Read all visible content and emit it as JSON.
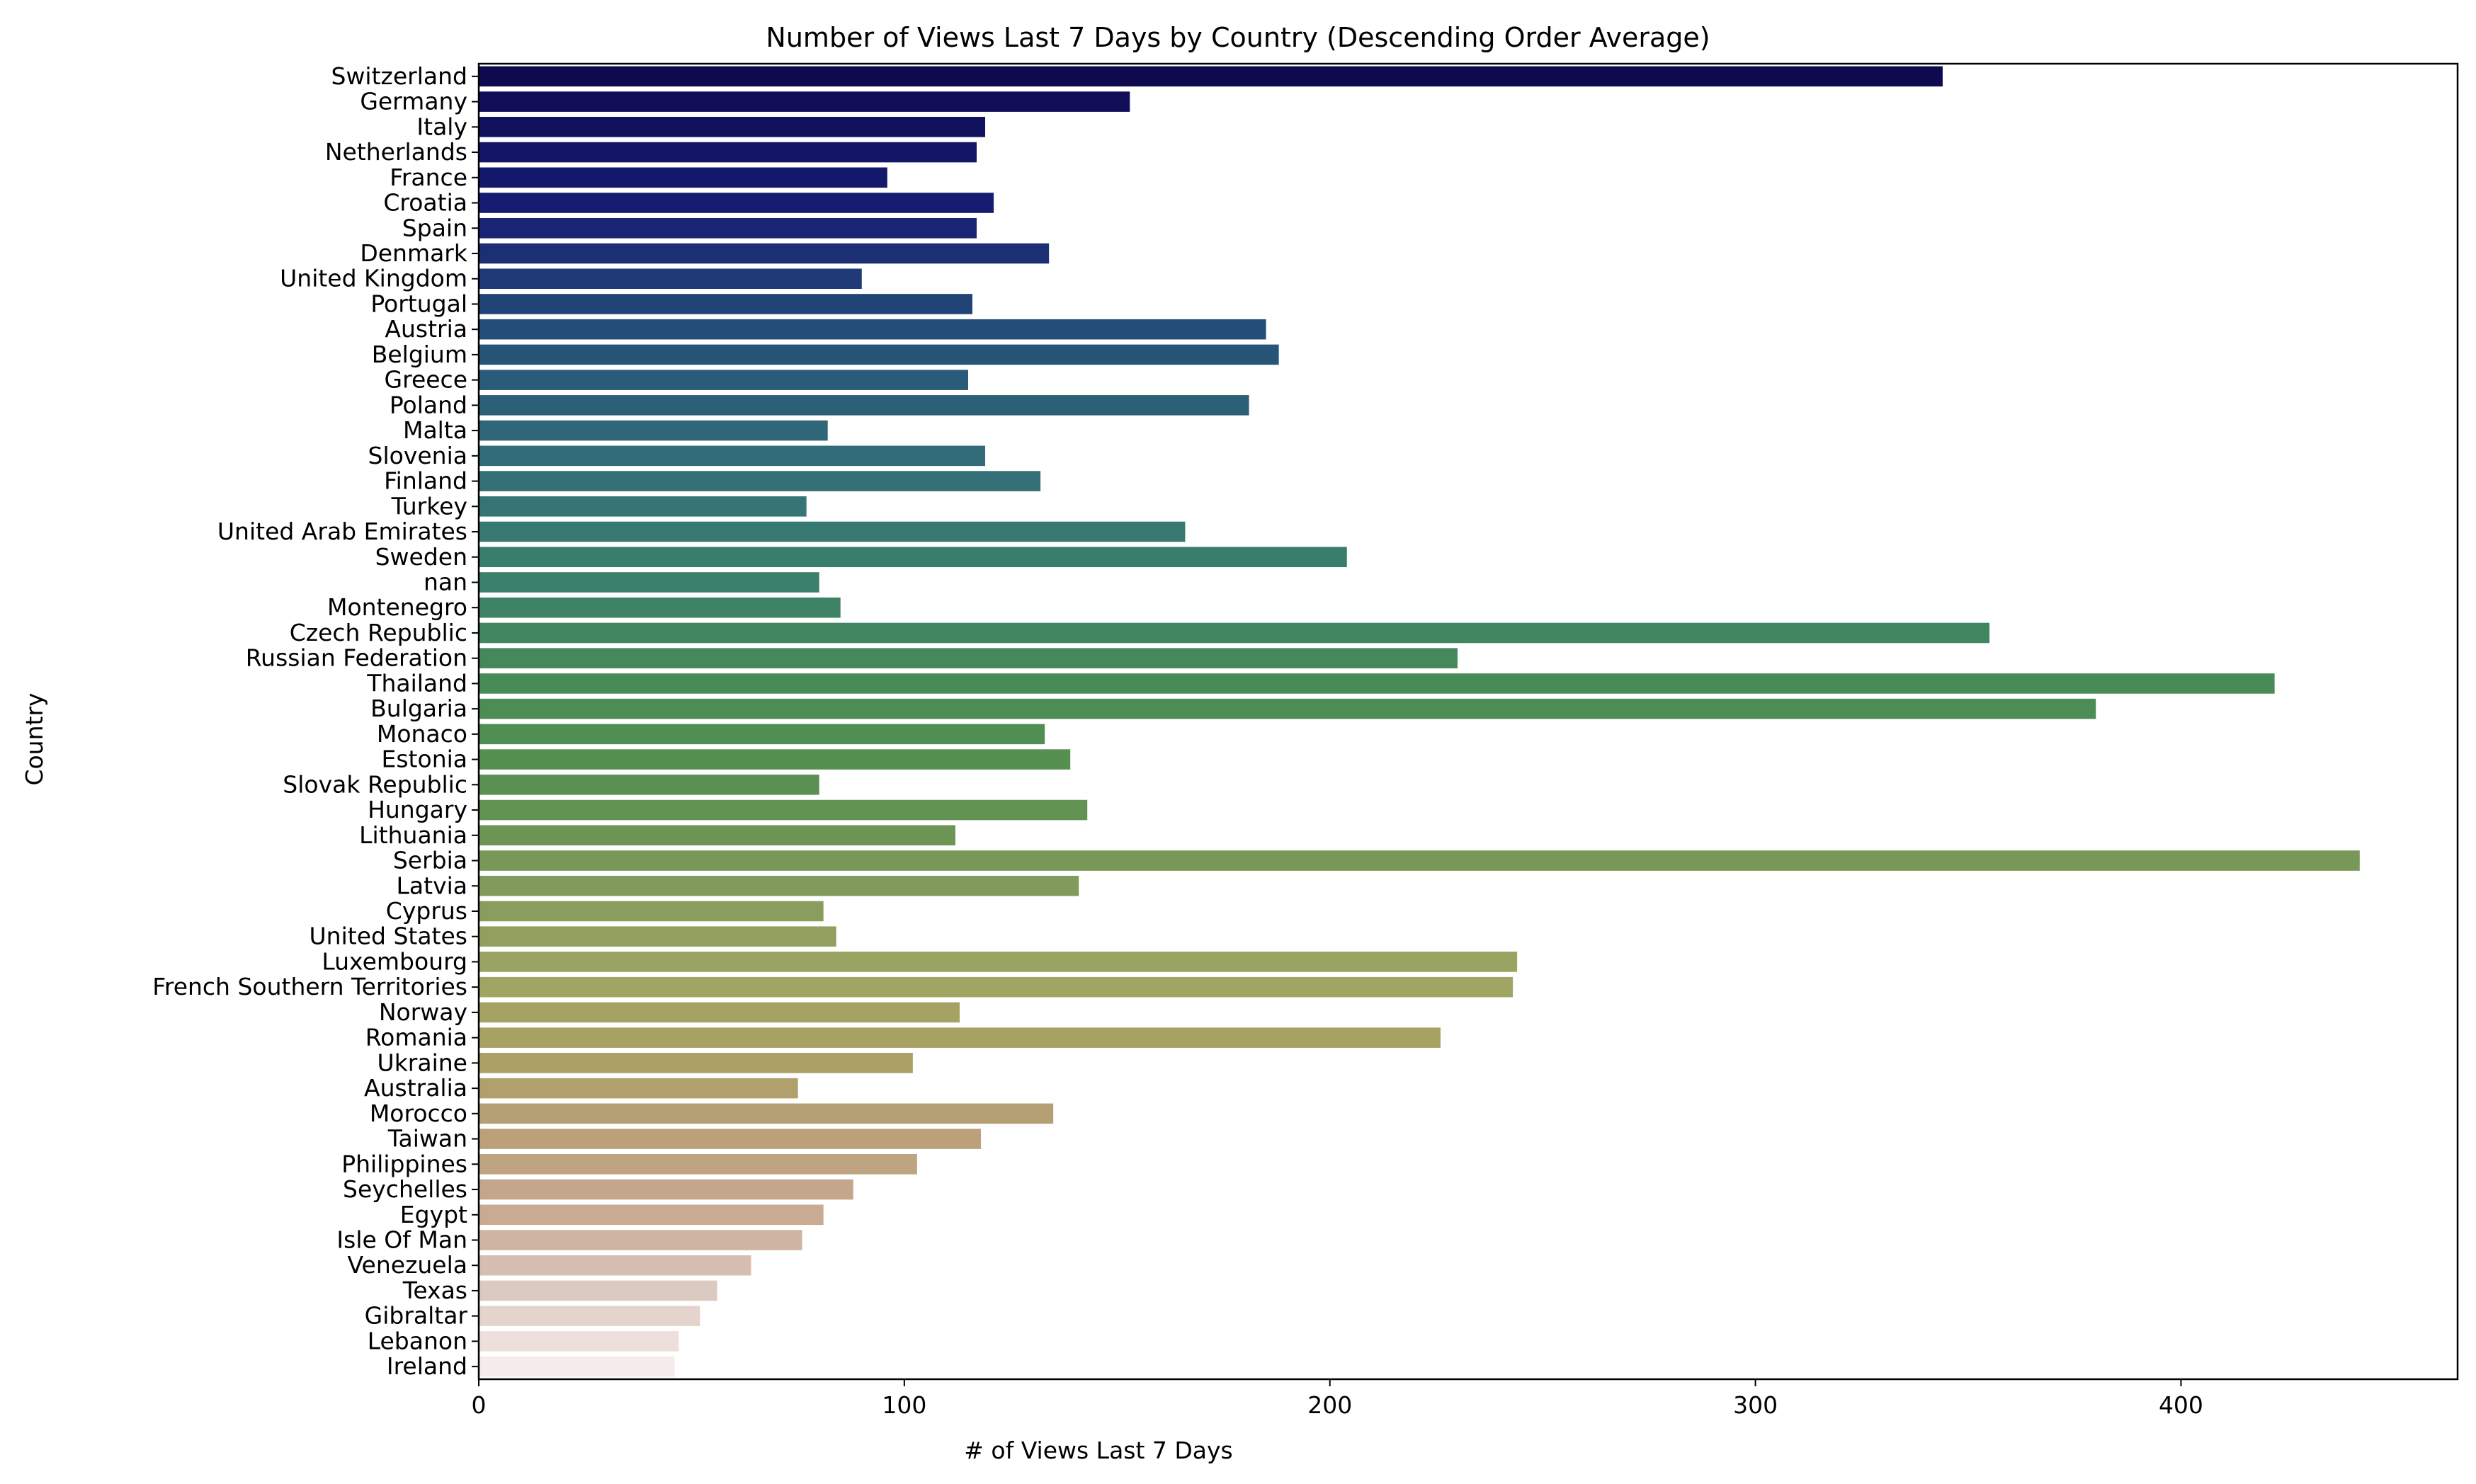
{
  "chart_data": {
    "type": "bar",
    "orientation": "horizontal",
    "title": "Number of Views Last 7 Days by Country (Descending Order Average)",
    "xlabel": "# of Views Last 7 Days",
    "ylabel": "Country",
    "xlim": [
      0,
      465
    ],
    "xticks": [
      0,
      100,
      200,
      300,
      400
    ],
    "grid": false,
    "palette": "gist_earth-like gradient (dark navy → teal → green → olive → tan → pale pink)",
    "categories": [
      "Switzerland",
      "Germany",
      "Italy",
      "Netherlands",
      "France",
      "Croatia",
      "Spain",
      "Denmark",
      "United Kingdom",
      "Portugal",
      "Austria",
      "Belgium",
      "Greece",
      "Poland",
      "Malta",
      "Slovenia",
      "Finland",
      "Turkey",
      "United Arab Emirates",
      "Sweden",
      "nan",
      "Montenegro",
      "Czech Republic",
      "Russian Federation",
      "Thailand",
      "Bulgaria",
      "Monaco",
      "Estonia",
      "Slovak Republic",
      "Hungary",
      "Lithuania",
      "Serbia",
      "Latvia",
      "Cyprus",
      "United States",
      "Luxembourg",
      "French Southern Territories",
      "Norway",
      "Romania",
      "Ukraine",
      "Australia",
      "Morocco",
      "Taiwan",
      "Philippines",
      "Seychelles",
      "Egypt",
      "Isle Of Man",
      "Venezuela",
      "Texas",
      "Gibraltar",
      "Lebanon",
      "Ireland"
    ],
    "values": [
      344,
      153,
      119,
      117,
      96,
      121,
      117,
      134,
      90,
      116,
      185,
      188,
      115,
      181,
      82,
      119,
      132,
      77,
      166,
      204,
      80,
      85,
      355,
      230,
      422,
      380,
      133,
      139,
      80,
      143,
      112,
      442,
      141,
      81,
      84,
      244,
      243,
      113,
      226,
      102,
      75,
      135,
      118,
      103,
      88,
      81,
      76,
      64,
      56,
      52,
      47,
      46
    ]
  }
}
